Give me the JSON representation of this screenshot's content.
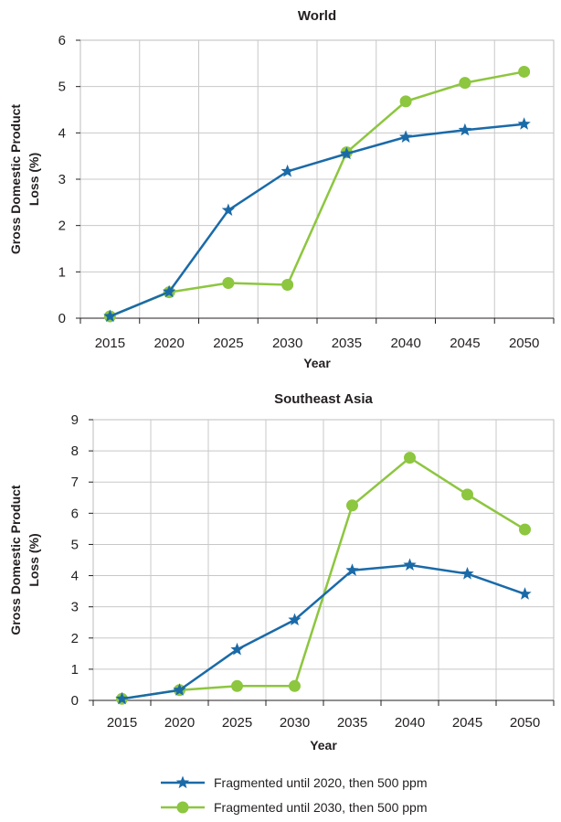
{
  "chart_data": [
    {
      "type": "line",
      "title": "World",
      "xlabel": "Year",
      "ylabel_line1": "Gross Domestic Product",
      "ylabel_line2": "Loss (%)",
      "categories": [
        "2015",
        "2020",
        "2025",
        "2030",
        "2035",
        "2040",
        "2045",
        "2050"
      ],
      "ylim": [
        0,
        6
      ],
      "yticks": [
        0,
        1,
        2,
        3,
        4,
        5,
        6
      ],
      "grid": true,
      "series": [
        {
          "name": "Fragmented until 2020, then 500 ppm",
          "color": "#1a6aa8",
          "marker": "star",
          "values": [
            0.04,
            0.57,
            2.33,
            3.17,
            3.55,
            3.91,
            4.06,
            4.19
          ]
        },
        {
          "name": "Fragmented until 2030, then 500 ppm",
          "color": "#8dc63f",
          "marker": "circle",
          "values": [
            0.04,
            0.56,
            0.76,
            0.72,
            3.58,
            4.68,
            5.08,
            5.32
          ]
        }
      ]
    },
    {
      "type": "line",
      "title": "Southeast Asia",
      "xlabel": "Year",
      "ylabel_line1": "Gross Domestic Product",
      "ylabel_line2": "Loss (%)",
      "categories": [
        "2015",
        "2020",
        "2025",
        "2030",
        "2035",
        "2040",
        "2045",
        "2050"
      ],
      "ylim": [
        0,
        9
      ],
      "yticks": [
        0,
        1,
        2,
        3,
        4,
        5,
        6,
        7,
        8,
        9
      ],
      "grid": true,
      "series": [
        {
          "name": "Fragmented until 2020, then 500 ppm",
          "color": "#1a6aa8",
          "marker": "star",
          "values": [
            0.05,
            0.33,
            1.63,
            2.58,
            4.17,
            4.34,
            4.06,
            3.41
          ]
        },
        {
          "name": "Fragmented until 2030, then 500 ppm",
          "color": "#8dc63f",
          "marker": "circle",
          "values": [
            0.05,
            0.33,
            0.46,
            0.46,
            6.25,
            7.78,
            6.6,
            5.48
          ]
        }
      ]
    }
  ],
  "legend": {
    "position": "bottom",
    "items": [
      {
        "label": "Fragmented until 2020, then 500 ppm",
        "color": "#1a6aa8",
        "marker": "star"
      },
      {
        "label": "Fragmented until 2030, then 500 ppm",
        "color": "#8dc63f",
        "marker": "circle"
      }
    ]
  }
}
